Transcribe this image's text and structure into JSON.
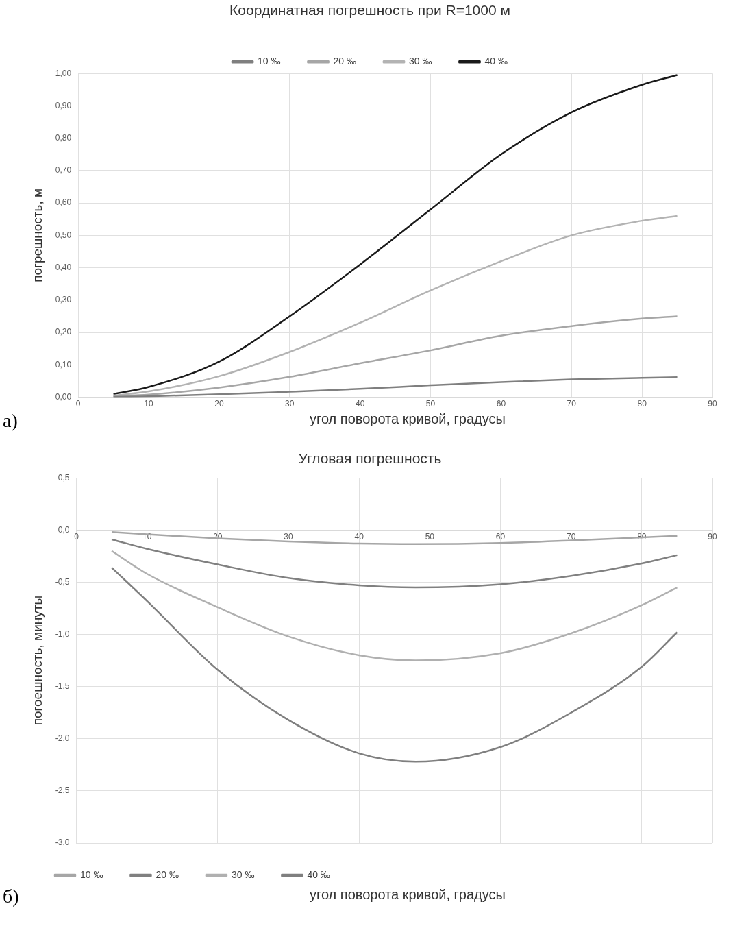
{
  "chart_data": [
    {
      "type": "line",
      "title": "Координатная погрешность при R=1000 м",
      "xlabel": "угол поворота кривой, градусы",
      "ylabel": "погрешность, м",
      "annotations": [
        "а)"
      ],
      "x": [
        5,
        10,
        20,
        30,
        40,
        50,
        60,
        70,
        80,
        85
      ],
      "series": [
        {
          "name": "10 ‰",
          "color": "#7f7f7f",
          "values": [
            0.001,
            0.003,
            0.009,
            0.017,
            0.026,
            0.037,
            0.047,
            0.055,
            0.06,
            0.062
          ]
        },
        {
          "name": "20 ‰",
          "color": "#a6a6a6",
          "values": [
            0.003,
            0.008,
            0.03,
            0.063,
            0.105,
            0.145,
            0.19,
            0.22,
            0.243,
            0.25
          ]
        },
        {
          "name": "30 ‰",
          "color": "#b3b3b3",
          "values": [
            0.005,
            0.018,
            0.065,
            0.14,
            0.23,
            0.33,
            0.42,
            0.5,
            0.545,
            0.56
          ]
        },
        {
          "name": "40 ‰",
          "color": "#1a1a1a",
          "values": [
            0.01,
            0.032,
            0.11,
            0.25,
            0.41,
            0.58,
            0.75,
            0.88,
            0.965,
            0.995
          ]
        }
      ],
      "xlim": [
        0,
        90
      ],
      "xticks": [
        0,
        10,
        20,
        30,
        40,
        50,
        60,
        70,
        80,
        90
      ],
      "ylim": [
        0,
        1
      ],
      "yticks": [
        {
          "value": 0,
          "label": "0,00"
        },
        {
          "value": 0.1,
          "label": "0,10"
        },
        {
          "value": 0.2,
          "label": "0,20"
        },
        {
          "value": 0.3,
          "label": "0,30"
        },
        {
          "value": 0.4,
          "label": "0,40"
        },
        {
          "value": 0.5,
          "label": "0,50"
        },
        {
          "value": 0.6,
          "label": "0,60"
        },
        {
          "value": 0.7,
          "label": "0,70"
        },
        {
          "value": 0.8,
          "label": "0,80"
        },
        {
          "value": 0.9,
          "label": "0,90"
        },
        {
          "value": 1,
          "label": "1,00"
        }
      ],
      "grid": true,
      "legend": "top"
    },
    {
      "type": "line",
      "title": "Угловая погрешность",
      "xlabel": "угол поворота кривой, градусы",
      "ylabel": "погоешность, минуты",
      "annotations": [
        "б)"
      ],
      "x": [
        5,
        10,
        20,
        30,
        40,
        48,
        60,
        70,
        80,
        85
      ],
      "series": [
        {
          "name": "10 ‰",
          "color": "#a6a6a6",
          "values": [
            -0.02,
            -0.04,
            -0.08,
            -0.11,
            -0.13,
            -0.135,
            -0.125,
            -0.1,
            -0.07,
            -0.055
          ]
        },
        {
          "name": "20 ‰",
          "color": "#808080",
          "values": [
            -0.09,
            -0.18,
            -0.33,
            -0.46,
            -0.53,
            -0.55,
            -0.52,
            -0.44,
            -0.32,
            -0.24
          ]
        },
        {
          "name": "30 ‰",
          "color": "#b0b0b0",
          "values": [
            -0.2,
            -0.42,
            -0.74,
            -1.02,
            -1.2,
            -1.25,
            -1.18,
            -0.99,
            -0.72,
            -0.55
          ]
        },
        {
          "name": "40 ‰",
          "color": "#7f7f7f",
          "values": [
            -0.36,
            -0.68,
            -1.34,
            -1.82,
            -2.14,
            -2.22,
            -2.08,
            -1.75,
            -1.31,
            -0.98
          ]
        }
      ],
      "xlim": [
        0,
        90
      ],
      "xticks": [
        0,
        10,
        20,
        30,
        40,
        50,
        60,
        70,
        80,
        90
      ],
      "ylim": [
        -3,
        0.5
      ],
      "yticks": [
        {
          "value": -3,
          "label": "-3,0"
        },
        {
          "value": -2.5,
          "label": "-2,5"
        },
        {
          "value": -2,
          "label": "-2,0"
        },
        {
          "value": -1.5,
          "label": "-1,5"
        },
        {
          "value": -1,
          "label": "-1,0"
        },
        {
          "value": -0.5,
          "label": "-0,5"
        },
        {
          "value": 0,
          "label": "0,0"
        },
        {
          "value": 0.5,
          "label": "0,5"
        }
      ],
      "grid": true,
      "legend": "bottom left"
    }
  ]
}
